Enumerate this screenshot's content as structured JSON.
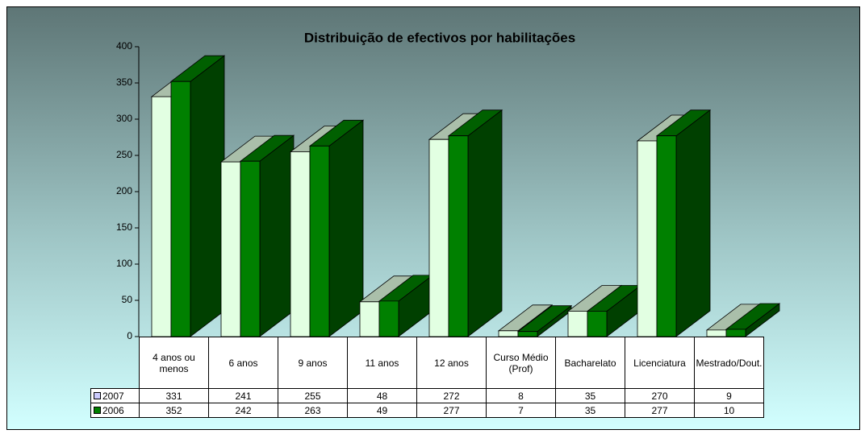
{
  "chart_data": {
    "type": "bar3d",
    "title": "Distribuição de efectivos por habilitações",
    "categories": [
      "4 anos ou menos",
      "6 anos",
      "9 anos",
      "11 anos",
      "12 anos",
      "Curso Médio (Prof)",
      "Bacharelato",
      "Licenciatura",
      "Mestrado/Dout."
    ],
    "series": [
      {
        "name": "2007",
        "color": "#e2ffe2",
        "values": [
          331,
          241,
          255,
          48,
          272,
          8,
          35,
          270,
          9
        ]
      },
      {
        "name": "2006",
        "color": "#008000",
        "values": [
          352,
          242,
          263,
          49,
          277,
          7,
          35,
          277,
          10
        ]
      }
    ],
    "ylim": [
      0,
      400
    ],
    "yticks": [
      0,
      50,
      100,
      150,
      200,
      250,
      300,
      350,
      400
    ]
  }
}
